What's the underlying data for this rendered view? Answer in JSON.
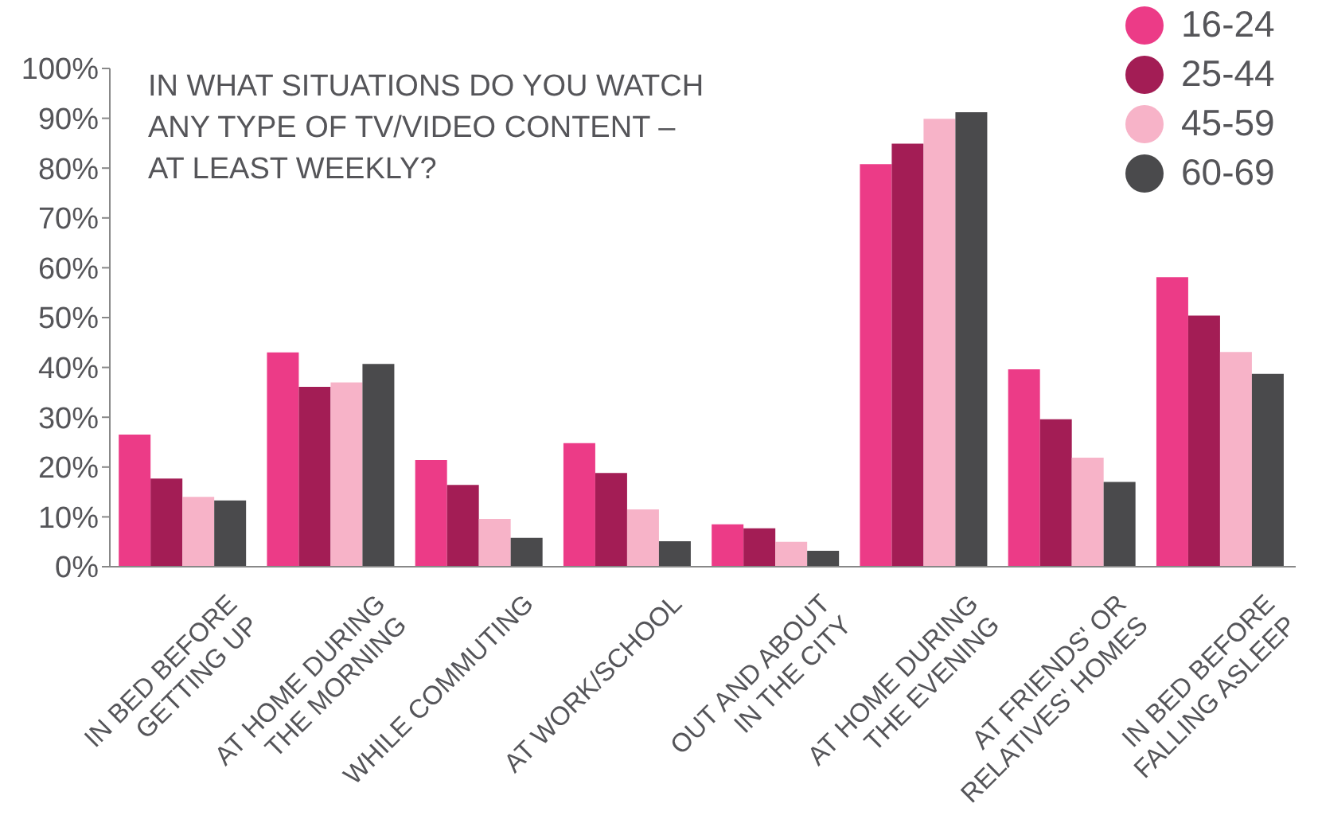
{
  "chart_data": {
    "type": "bar",
    "title": "IN WHAT SITUATIONS DO YOU WATCH ANY TYPE OF TV/VIDEO CONTENT – AT LEAST WEEKLY?",
    "categories": [
      "IN BED BEFORE\nGETTING UP",
      "AT HOME DURING\nTHE MORNING",
      "WHILE COMMUTING",
      "AT WORK/SCHOOL",
      "OUT AND ABOUT\nIN THE CITY",
      "AT HOME DURING\nTHE EVENING",
      "AT FRIENDS' OR\nRELATIVES' HOMES",
      "IN BED BEFORE\nFALLING ASLEEP"
    ],
    "series": [
      {
        "name": "16-24",
        "color": "#ec3b87",
        "values": [
          26.5,
          43,
          21.4,
          24.8,
          8.5,
          80.8,
          39.6,
          58.1
        ]
      },
      {
        "name": "25-44",
        "color": "#a31d55",
        "values": [
          17.7,
          36.1,
          16.4,
          18.8,
          7.7,
          84.9,
          29.6,
          50.4
        ]
      },
      {
        "name": "45-59",
        "color": "#f7b3c8",
        "values": [
          14,
          37,
          9.6,
          11.5,
          5,
          89.9,
          21.9,
          43.1
        ]
      },
      {
        "name": "60-69",
        "color": "#4a4a4c",
        "values": [
          13.3,
          40.7,
          5.8,
          5.1,
          3.2,
          91.2,
          17,
          38.7
        ]
      }
    ],
    "ylim": [
      0,
      100
    ],
    "yticks": [
      {
        "value": 0,
        "label": "0%"
      },
      {
        "value": 10,
        "label": "10%"
      },
      {
        "value": 20,
        "label": "20%"
      },
      {
        "value": 30,
        "label": "30%"
      },
      {
        "value": 40,
        "label": "40%"
      },
      {
        "value": 50,
        "label": "50%"
      },
      {
        "value": 60,
        "label": "60%"
      },
      {
        "value": 70,
        "label": "70%"
      },
      {
        "value": 80,
        "label": "80%"
      },
      {
        "value": 90,
        "label": "90%"
      },
      {
        "value": 100,
        "label": "100%"
      }
    ],
    "grid": false,
    "legend": "top right"
  }
}
